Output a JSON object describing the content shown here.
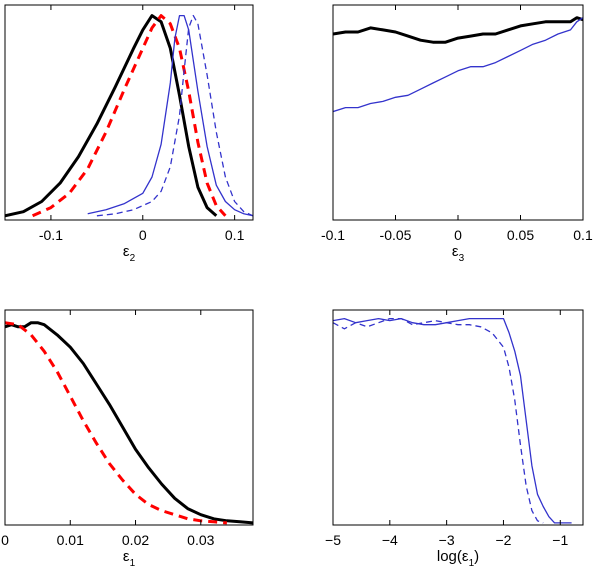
{
  "chart_data": [
    {
      "type": "line",
      "xlabel": {
        "base": "ε",
        "sub": "2",
        "after": ""
      },
      "xlim": [
        -0.15,
        0.12
      ],
      "ylim": [
        0,
        1
      ],
      "xticks": [
        -0.1,
        0,
        0.1
      ],
      "xtick_labels": [
        "-0.1",
        "0",
        "0.1"
      ],
      "ytick_labels": [],
      "series": [
        {
          "color": "#000000",
          "style": "solid",
          "weight": "thick",
          "x": [
            -0.15,
            -0.13,
            -0.11,
            -0.09,
            -0.07,
            -0.05,
            -0.03,
            -0.01,
            0.0,
            0.01,
            0.02,
            0.03,
            0.04,
            0.05,
            0.06,
            0.07,
            0.08
          ],
          "y": [
            0.01,
            0.03,
            0.08,
            0.17,
            0.3,
            0.46,
            0.64,
            0.83,
            0.92,
            0.99,
            0.96,
            0.83,
            0.6,
            0.35,
            0.15,
            0.05,
            0.01
          ]
        },
        {
          "color": "#ff0000",
          "style": "dashed",
          "weight": "thick",
          "x": [
            -0.12,
            -0.1,
            -0.08,
            -0.06,
            -0.04,
            -0.02,
            0.0,
            0.01,
            0.02,
            0.03,
            0.04,
            0.05,
            0.06,
            0.07,
            0.08,
            0.09
          ],
          "y": [
            0.01,
            0.05,
            0.12,
            0.24,
            0.42,
            0.63,
            0.83,
            0.93,
            0.99,
            0.95,
            0.83,
            0.62,
            0.37,
            0.17,
            0.06,
            0.01
          ]
        },
        {
          "color": "#3333cc",
          "style": "solid",
          "weight": "thin",
          "x": [
            -0.06,
            -0.04,
            -0.02,
            0.0,
            0.01,
            0.02,
            0.03,
            0.035,
            0.04,
            0.045,
            0.05,
            0.06,
            0.07,
            0.08,
            0.09,
            0.1,
            0.11,
            0.12
          ],
          "y": [
            0.02,
            0.04,
            0.07,
            0.12,
            0.2,
            0.36,
            0.66,
            0.88,
            0.99,
            0.99,
            0.92,
            0.62,
            0.35,
            0.16,
            0.08,
            0.04,
            0.02,
            0.01
          ]
        },
        {
          "color": "#3333cc",
          "style": "dashed",
          "weight": "thin",
          "x": [
            -0.05,
            -0.03,
            -0.01,
            0.01,
            0.02,
            0.03,
            0.04,
            0.045,
            0.05,
            0.055,
            0.06,
            0.07,
            0.08,
            0.09,
            0.1,
            0.11,
            0.12
          ],
          "y": [
            0.01,
            0.02,
            0.04,
            0.08,
            0.13,
            0.25,
            0.5,
            0.72,
            0.93,
            0.99,
            0.95,
            0.7,
            0.42,
            0.2,
            0.08,
            0.03,
            0.01
          ]
        }
      ]
    },
    {
      "type": "line",
      "xlabel": {
        "base": "ε",
        "sub": "3",
        "after": ""
      },
      "xlim": [
        -0.1,
        0.1
      ],
      "ylim": [
        0,
        1
      ],
      "xticks": [
        -0.1,
        -0.05,
        0,
        0.05,
        0.1
      ],
      "xtick_labels": [
        "-0.1",
        "-0.05",
        "0",
        "0.05",
        "0.1"
      ],
      "ytick_labels": [],
      "series": [
        {
          "color": "#000000",
          "style": "solid",
          "weight": "thick",
          "x": [
            -0.1,
            -0.09,
            -0.08,
            -0.07,
            -0.06,
            -0.05,
            -0.04,
            -0.03,
            -0.02,
            -0.01,
            0.0,
            0.01,
            0.02,
            0.03,
            0.04,
            0.05,
            0.06,
            0.07,
            0.08,
            0.09,
            0.095,
            0.1
          ],
          "y": [
            0.9,
            0.91,
            0.91,
            0.93,
            0.92,
            0.91,
            0.89,
            0.87,
            0.86,
            0.86,
            0.88,
            0.89,
            0.9,
            0.9,
            0.92,
            0.94,
            0.95,
            0.96,
            0.96,
            0.96,
            0.98,
            0.97
          ]
        },
        {
          "color": "#3333cc",
          "style": "solid",
          "weight": "thin",
          "x": [
            -0.1,
            -0.09,
            -0.08,
            -0.07,
            -0.06,
            -0.05,
            -0.04,
            -0.03,
            -0.02,
            -0.01,
            0.0,
            0.01,
            0.02,
            0.03,
            0.04,
            0.05,
            0.06,
            0.07,
            0.08,
            0.09,
            0.095,
            0.1
          ],
          "y": [
            0.52,
            0.54,
            0.54,
            0.56,
            0.57,
            0.59,
            0.6,
            0.63,
            0.66,
            0.69,
            0.72,
            0.74,
            0.74,
            0.76,
            0.79,
            0.82,
            0.85,
            0.87,
            0.9,
            0.92,
            0.96,
            0.98
          ]
        }
      ]
    },
    {
      "type": "line",
      "xlabel": {
        "base": "ε",
        "sub": "1",
        "after": ""
      },
      "xlim": [
        0,
        0.038
      ],
      "ylim": [
        0,
        1
      ],
      "xticks": [
        0,
        0.01,
        0.02,
        0.03
      ],
      "xtick_labels": [
        "0",
        "0.01",
        "0.02",
        "0.03"
      ],
      "ytick_labels": [],
      "series": [
        {
          "color": "#000000",
          "style": "solid",
          "weight": "thick",
          "x": [
            0,
            0.001,
            0.002,
            0.003,
            0.004,
            0.005,
            0.006,
            0.008,
            0.01,
            0.012,
            0.014,
            0.016,
            0.018,
            0.02,
            0.022,
            0.024,
            0.026,
            0.028,
            0.03,
            0.032,
            0.034,
            0.036,
            0.038
          ],
          "y": [
            0.96,
            0.97,
            0.96,
            0.96,
            0.98,
            0.98,
            0.97,
            0.92,
            0.86,
            0.78,
            0.68,
            0.58,
            0.47,
            0.36,
            0.27,
            0.19,
            0.12,
            0.07,
            0.04,
            0.02,
            0.01,
            0.005,
            0.0
          ]
        },
        {
          "color": "#ff0000",
          "style": "dashed",
          "weight": "thick",
          "x": [
            0,
            0.002,
            0.004,
            0.006,
            0.008,
            0.01,
            0.012,
            0.014,
            0.016,
            0.018,
            0.02,
            0.022,
            0.024,
            0.026,
            0.028,
            0.03,
            0.032,
            0.034
          ],
          "y": [
            0.98,
            0.97,
            0.92,
            0.84,
            0.74,
            0.62,
            0.5,
            0.39,
            0.29,
            0.21,
            0.14,
            0.09,
            0.06,
            0.04,
            0.02,
            0.01,
            0.005,
            0.0
          ]
        }
      ]
    },
    {
      "type": "line",
      "xlabel": {
        "base": "log(ε",
        "sub": "1",
        "after": ")"
      },
      "xlim": [
        -5,
        -0.6
      ],
      "ylim": [
        0,
        1
      ],
      "xticks": [
        -5,
        -4,
        -3,
        -2,
        -1
      ],
      "xtick_labels": [
        "−5",
        "−4",
        "−3",
        "−2",
        "−1"
      ],
      "ytick_labels": [],
      "series": [
        {
          "color": "#3333cc",
          "style": "solid",
          "weight": "thin",
          "x": [
            -5,
            -4.8,
            -4.6,
            -4.4,
            -4.2,
            -4.0,
            -3.8,
            -3.6,
            -3.4,
            -3.2,
            -3.0,
            -2.8,
            -2.6,
            -2.4,
            -2.2,
            -2.0,
            -1.9,
            -1.8,
            -1.7,
            -1.6,
            -1.5,
            -1.4,
            -1.3,
            -1.2,
            -1.1,
            -1.0,
            -0.9,
            -0.8
          ],
          "y": [
            0.99,
            1.0,
            0.98,
            0.99,
            1.0,
            0.99,
            1.0,
            0.98,
            0.97,
            0.97,
            0.98,
            0.99,
            1.0,
            1.0,
            1.0,
            1.0,
            0.93,
            0.84,
            0.72,
            0.5,
            0.28,
            0.14,
            0.08,
            0.03,
            0.0,
            0.0,
            0.0,
            0.0
          ]
        },
        {
          "color": "#3333cc",
          "style": "dashed",
          "weight": "thin",
          "x": [
            -5,
            -4.8,
            -4.6,
            -4.4,
            -4.2,
            -4.0,
            -3.8,
            -3.6,
            -3.4,
            -3.2,
            -3.0,
            -2.8,
            -2.6,
            -2.4,
            -2.2,
            -2.0,
            -1.9,
            -1.8,
            -1.7,
            -1.6,
            -1.5,
            -1.4,
            -1.3
          ],
          "y": [
            0.98,
            0.95,
            0.98,
            0.96,
            0.98,
            1.0,
            1.0,
            0.97,
            0.98,
            0.99,
            0.98,
            0.97,
            0.97,
            0.96,
            0.93,
            0.86,
            0.76,
            0.6,
            0.38,
            0.18,
            0.06,
            0.01,
            0.0
          ]
        }
      ]
    }
  ]
}
